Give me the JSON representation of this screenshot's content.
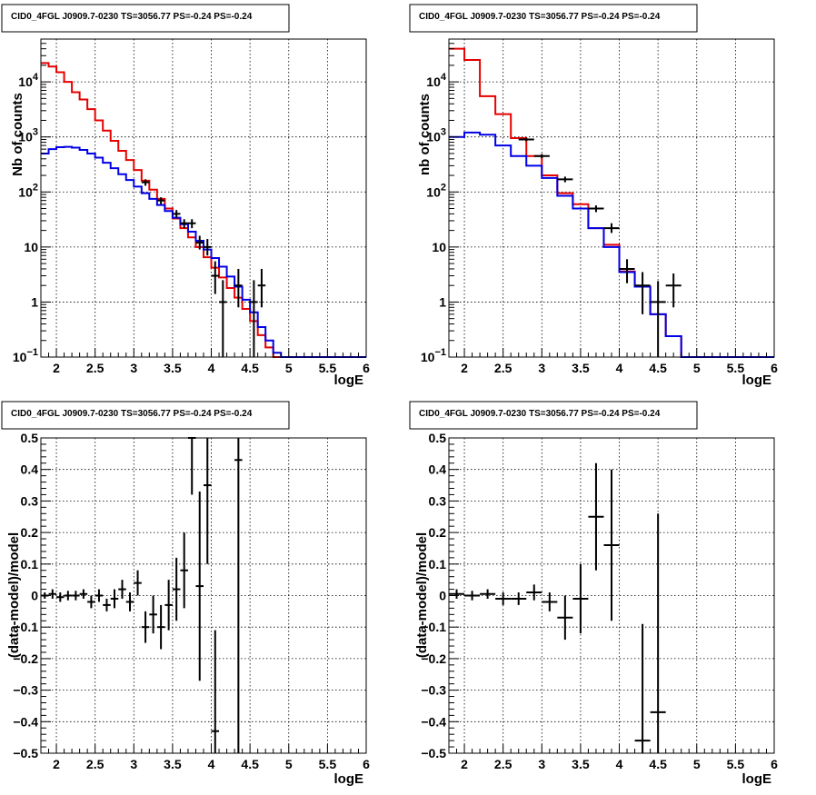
{
  "chart_data": [
    {
      "type": "line",
      "title": "CID0_4FGL J0909.7-0230 TS=3056.77 PS=-0.24 PS=-0.24",
      "xlabel": "logE",
      "ylabel": "Nb of counts",
      "xlim": [
        1.8,
        6.0
      ],
      "ylim": [
        0.1,
        60000
      ],
      "log_y": true,
      "grid": true,
      "x_ticks": [
        "2",
        "2.5",
        "3",
        "3.5",
        "4",
        "4.5",
        "5",
        "5.5",
        "6"
      ],
      "y_ticks": [
        {
          "v": 0.1,
          "label": "10",
          "sup": "−1"
        },
        {
          "v": 1,
          "label": "1",
          "sup": ""
        },
        {
          "v": 10,
          "label": "10",
          "sup": ""
        },
        {
          "v": 100,
          "label": "10",
          "sup": "2"
        },
        {
          "v": 1000,
          "label": "10",
          "sup": "3"
        },
        {
          "v": 10000,
          "label": "10",
          "sup": "4"
        }
      ],
      "bin_edges": [
        1.8,
        1.9,
        2.0,
        2.1,
        2.2,
        2.3,
        2.4,
        2.5,
        2.6,
        2.7,
        2.8,
        2.9,
        3.0,
        3.1,
        3.2,
        3.3,
        3.4,
        3.5,
        3.6,
        3.7,
        3.8,
        3.9,
        4.0,
        4.1,
        4.2,
        4.3,
        4.4,
        4.5,
        4.6,
        4.7,
        4.8,
        4.9,
        5.0,
        5.1,
        5.2,
        5.3,
        5.4,
        5.5,
        5.6,
        5.7,
        5.8,
        5.9,
        6.0
      ],
      "series": [
        {
          "color": "#e60000",
          "values": [
            22000,
            19000,
            15000,
            10000,
            6500,
            4800,
            3200,
            2000,
            1300,
            850,
            560,
            380,
            250,
            160,
            110,
            75,
            50,
            33,
            22,
            15,
            10,
            6.5,
            4.2,
            2.8,
            1.8,
            1.2,
            0.75,
            0.45,
            0.25,
            0.15,
            0.1,
            0.1,
            0.1,
            0.1,
            0.1,
            0.1,
            0.1,
            0.1,
            0.1,
            0.1,
            0.1,
            0.1
          ]
        },
        {
          "color": "#0000e6",
          "values": [
            500,
            600,
            650,
            660,
            640,
            580,
            500,
            420,
            340,
            270,
            210,
            165,
            125,
            95,
            75,
            58,
            45,
            34,
            26,
            19,
            13,
            9,
            6.3,
            4.4,
            2.9,
            1.9,
            1.1,
            0.65,
            0.35,
            0.2,
            0.12,
            0.1,
            0.1,
            0.1,
            0.1,
            0.1,
            0.1,
            0.1,
            0.1,
            0.1,
            0.1,
            0.1
          ]
        }
      ],
      "points": [
        {
          "x": 3.15,
          "y": 150,
          "xerr": 0.05,
          "ylo": 130,
          "yhi": 170
        },
        {
          "x": 3.35,
          "y": 70,
          "xerr": 0.05,
          "ylo": 60,
          "yhi": 80
        },
        {
          "x": 3.55,
          "y": 40,
          "xerr": 0.05,
          "ylo": 34,
          "yhi": 47
        },
        {
          "x": 3.65,
          "y": 27,
          "xerr": 0.05,
          "ylo": 22,
          "yhi": 32
        },
        {
          "x": 3.75,
          "y": 27,
          "xerr": 0.05,
          "ylo": 22,
          "yhi": 32
        },
        {
          "x": 3.85,
          "y": 12,
          "xerr": 0.05,
          "ylo": 9,
          "yhi": 16
        },
        {
          "x": 3.95,
          "y": 10,
          "xerr": 0.05,
          "ylo": 7,
          "yhi": 14
        },
        {
          "x": 4.05,
          "y": 3,
          "xerr": 0.05,
          "ylo": 1.4,
          "yhi": 5.5
        },
        {
          "x": 4.15,
          "y": 1,
          "xerr": 0.05,
          "ylo": 0.1,
          "yhi": 2.5
        },
        {
          "x": 4.35,
          "y": 2,
          "xerr": 0.05,
          "ylo": 0.8,
          "yhi": 4
        },
        {
          "x": 4.55,
          "y": 1,
          "xerr": 0.05,
          "ylo": 0.1,
          "yhi": 2.5
        },
        {
          "x": 4.65,
          "y": 2,
          "xerr": 0.05,
          "ylo": 0.8,
          "yhi": 4
        }
      ]
    },
    {
      "type": "line",
      "title": "CID0_4FGL J0909.7-0230 TS=3056.77 PS=-0.24 PS=-0.24",
      "xlabel": "logE",
      "ylabel": "nb of counts",
      "xlim": [
        1.8,
        6.0
      ],
      "ylim": [
        0.1,
        60000
      ],
      "log_y": true,
      "grid": true,
      "x_ticks": [
        "2",
        "2.5",
        "3",
        "3.5",
        "4",
        "4.5",
        "5",
        "5.5",
        "6"
      ],
      "y_ticks": [
        {
          "v": 0.1,
          "label": "10",
          "sup": "−1"
        },
        {
          "v": 1,
          "label": "1",
          "sup": ""
        },
        {
          "v": 10,
          "label": "10",
          "sup": ""
        },
        {
          "v": 100,
          "label": "10",
          "sup": "2"
        },
        {
          "v": 1000,
          "label": "10",
          "sup": "3"
        },
        {
          "v": 10000,
          "label": "10",
          "sup": "4"
        }
      ],
      "bin_edges": [
        1.8,
        2.0,
        2.2,
        2.4,
        2.6,
        2.8,
        3.0,
        3.2,
        3.4,
        3.6,
        3.8,
        4.0,
        4.2,
        4.4,
        4.6,
        4.8,
        5.0,
        5.2,
        5.4,
        5.6,
        5.8,
        6.0
      ],
      "series": [
        {
          "color": "#e60000",
          "values": [
            40000,
            25000,
            5500,
            2600,
            950,
            450,
            200,
            95,
            60,
            22,
            11,
            3.6,
            1.9,
            0.6,
            0.24,
            0.1,
            0.1,
            0.1,
            0.1,
            0.1,
            0.1
          ]
        },
        {
          "color": "#0000e6",
          "values": [
            1000,
            1200,
            1100,
            700,
            450,
            300,
            180,
            85,
            50,
            22,
            10,
            3.5,
            1.9,
            0.6,
            0.24,
            0.1,
            0.1,
            0.1,
            0.1,
            0.1,
            0.1
          ]
        }
      ],
      "points": [
        {
          "x": 2.8,
          "y": 900,
          "xerr": 0.1,
          "ylo": 840,
          "yhi": 960
        },
        {
          "x": 3.0,
          "y": 450,
          "xerr": 0.1,
          "ylo": 410,
          "yhi": 490
        },
        {
          "x": 3.3,
          "y": 170,
          "xerr": 0.1,
          "ylo": 150,
          "yhi": 190
        },
        {
          "x": 3.7,
          "y": 50,
          "xerr": 0.1,
          "ylo": 43,
          "yhi": 57
        },
        {
          "x": 3.9,
          "y": 22,
          "xerr": 0.1,
          "ylo": 18,
          "yhi": 27
        },
        {
          "x": 4.1,
          "y": 4,
          "xerr": 0.1,
          "ylo": 2.2,
          "yhi": 6
        },
        {
          "x": 4.3,
          "y": 2,
          "xerr": 0.1,
          "ylo": 0.6,
          "yhi": 3.5
        },
        {
          "x": 4.5,
          "y": 1,
          "xerr": 0.1,
          "ylo": 0.1,
          "yhi": 2.4
        },
        {
          "x": 4.7,
          "y": 2,
          "xerr": 0.1,
          "ylo": 0.8,
          "yhi": 3.3
        }
      ]
    },
    {
      "type": "scatter",
      "title": "CID0_4FGL J0909.7-0230 TS=3056.77 PS=-0.24 PS=-0.24",
      "xlabel": "logE",
      "ylabel": "(data-model)/model",
      "xlim": [
        1.8,
        6.0
      ],
      "ylim": [
        -0.5,
        0.5
      ],
      "log_y": false,
      "grid": true,
      "x_ticks": [
        "2",
        "2.5",
        "3",
        "3.5",
        "4",
        "4.5",
        "5",
        "5.5",
        "6"
      ],
      "y_ticks": [
        {
          "v": -0.5,
          "label": "−0.5"
        },
        {
          "v": -0.4,
          "label": "−0.4"
        },
        {
          "v": -0.3,
          "label": "−0.3"
        },
        {
          "v": -0.2,
          "label": "−0.2"
        },
        {
          "v": -0.1,
          "label": "−0.1"
        },
        {
          "v": 0,
          "label": "0"
        },
        {
          "v": 0.1,
          "label": "0.1"
        },
        {
          "v": 0.2,
          "label": "0.2"
        },
        {
          "v": 0.3,
          "label": "0.3"
        },
        {
          "v": 0.4,
          "label": "0.4"
        },
        {
          "v": 0.5,
          "label": "0.5"
        }
      ],
      "points": [
        {
          "x": 1.85,
          "y": 0.0,
          "xerr": 0.05,
          "ylo": -0.01,
          "yhi": 0.01
        },
        {
          "x": 1.95,
          "y": 0.005,
          "xerr": 0.05,
          "ylo": -0.01,
          "yhi": 0.02
        },
        {
          "x": 2.05,
          "y": -0.005,
          "xerr": 0.05,
          "ylo": -0.02,
          "yhi": 0.01
        },
        {
          "x": 2.15,
          "y": 0.0,
          "xerr": 0.05,
          "ylo": -0.015,
          "yhi": 0.015
        },
        {
          "x": 2.25,
          "y": 0.0,
          "xerr": 0.05,
          "ylo": -0.015,
          "yhi": 0.015
        },
        {
          "x": 2.35,
          "y": 0.005,
          "xerr": 0.05,
          "ylo": -0.01,
          "yhi": 0.02
        },
        {
          "x": 2.45,
          "y": -0.02,
          "xerr": 0.05,
          "ylo": -0.04,
          "yhi": 0.0
        },
        {
          "x": 2.55,
          "y": 0.0,
          "xerr": 0.05,
          "ylo": -0.02,
          "yhi": 0.02
        },
        {
          "x": 2.65,
          "y": -0.03,
          "xerr": 0.05,
          "ylo": -0.05,
          "yhi": -0.01
        },
        {
          "x": 2.75,
          "y": -0.01,
          "xerr": 0.05,
          "ylo": -0.04,
          "yhi": 0.02
        },
        {
          "x": 2.85,
          "y": 0.02,
          "xerr": 0.05,
          "ylo": -0.01,
          "yhi": 0.05
        },
        {
          "x": 2.95,
          "y": -0.02,
          "xerr": 0.05,
          "ylo": -0.05,
          "yhi": 0.01
        },
        {
          "x": 3.05,
          "y": 0.04,
          "xerr": 0.05,
          "ylo": 0.0,
          "yhi": 0.08
        },
        {
          "x": 3.15,
          "y": -0.1,
          "xerr": 0.05,
          "ylo": -0.15,
          "yhi": -0.05
        },
        {
          "x": 3.25,
          "y": -0.06,
          "xerr": 0.05,
          "ylo": -0.12,
          "yhi": 0.0
        },
        {
          "x": 3.35,
          "y": -0.1,
          "xerr": 0.05,
          "ylo": -0.17,
          "yhi": -0.03
        },
        {
          "x": 3.45,
          "y": -0.03,
          "xerr": 0.05,
          "ylo": -0.11,
          "yhi": 0.05
        },
        {
          "x": 3.55,
          "y": 0.02,
          "xerr": 0.05,
          "ylo": -0.08,
          "yhi": 0.12
        },
        {
          "x": 3.65,
          "y": 0.08,
          "xerr": 0.05,
          "ylo": -0.04,
          "yhi": 0.2
        },
        {
          "x": 3.75,
          "y": 0.5,
          "xerr": 0.05,
          "ylo": 0.32,
          "yhi": 0.5
        },
        {
          "x": 3.85,
          "y": 0.03,
          "xerr": 0.05,
          "ylo": -0.27,
          "yhi": 0.33
        },
        {
          "x": 3.95,
          "y": 0.35,
          "xerr": 0.05,
          "ylo": 0.1,
          "yhi": 0.5
        },
        {
          "x": 4.05,
          "y": -0.43,
          "xerr": 0.05,
          "ylo": -0.5,
          "yhi": -0.11
        },
        {
          "x": 4.35,
          "y": 0.43,
          "xerr": 0.05,
          "ylo": -0.5,
          "yhi": 0.5
        }
      ]
    },
    {
      "type": "scatter",
      "title": "CID0_4FGL J0909.7-0230 TS=3056.77 PS=-0.24 PS=-0.24",
      "xlabel": "logE",
      "ylabel": "(data-model)/model",
      "xlim": [
        1.8,
        6.0
      ],
      "ylim": [
        -0.5,
        0.5
      ],
      "log_y": false,
      "grid": true,
      "x_ticks": [
        "2",
        "2.5",
        "3",
        "3.5",
        "4",
        "4.5",
        "5",
        "5.5",
        "6"
      ],
      "y_ticks": [
        {
          "v": -0.5,
          "label": "−0.5"
        },
        {
          "v": -0.4,
          "label": "−0.4"
        },
        {
          "v": -0.3,
          "label": "−0.3"
        },
        {
          "v": -0.2,
          "label": "−0.2"
        },
        {
          "v": -0.1,
          "label": "−0.1"
        },
        {
          "v": 0,
          "label": "0"
        },
        {
          "v": 0.1,
          "label": "0.1"
        },
        {
          "v": 0.2,
          "label": "0.2"
        },
        {
          "v": 0.3,
          "label": "0.3"
        },
        {
          "v": 0.4,
          "label": "0.4"
        },
        {
          "v": 0.5,
          "label": "0.5"
        }
      ],
      "points": [
        {
          "x": 1.9,
          "y": 0.005,
          "xerr": 0.1,
          "ylo": -0.01,
          "yhi": 0.02
        },
        {
          "x": 2.1,
          "y": 0.0,
          "xerr": 0.1,
          "ylo": -0.015,
          "yhi": 0.015
        },
        {
          "x": 2.3,
          "y": 0.005,
          "xerr": 0.1,
          "ylo": -0.01,
          "yhi": 0.02
        },
        {
          "x": 2.5,
          "y": -0.01,
          "xerr": 0.1,
          "ylo": -0.03,
          "yhi": 0.01
        },
        {
          "x": 2.7,
          "y": -0.01,
          "xerr": 0.1,
          "ylo": -0.03,
          "yhi": 0.01
        },
        {
          "x": 2.9,
          "y": 0.01,
          "xerr": 0.1,
          "ylo": -0.015,
          "yhi": 0.035
        },
        {
          "x": 3.1,
          "y": -0.02,
          "xerr": 0.1,
          "ylo": -0.05,
          "yhi": 0.01
        },
        {
          "x": 3.3,
          "y": -0.07,
          "xerr": 0.1,
          "ylo": -0.14,
          "yhi": 0.0
        },
        {
          "x": 3.5,
          "y": -0.01,
          "xerr": 0.1,
          "ylo": -0.12,
          "yhi": 0.1
        },
        {
          "x": 3.7,
          "y": 0.25,
          "xerr": 0.1,
          "ylo": 0.08,
          "yhi": 0.42
        },
        {
          "x": 3.9,
          "y": 0.16,
          "xerr": 0.1,
          "ylo": -0.08,
          "yhi": 0.4
        },
        {
          "x": 4.3,
          "y": -0.46,
          "xerr": 0.1,
          "ylo": -0.5,
          "yhi": -0.09
        },
        {
          "x": 4.5,
          "y": -0.37,
          "xerr": 0.1,
          "ylo": -0.5,
          "yhi": 0.26
        }
      ]
    }
  ]
}
